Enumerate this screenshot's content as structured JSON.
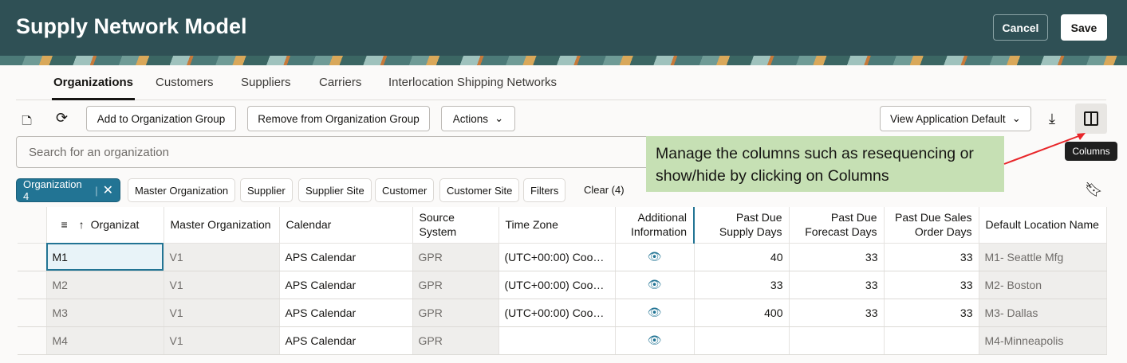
{
  "header": {
    "title": "Supply Network Model",
    "cancel": "Cancel",
    "save": "Save"
  },
  "tabs": [
    "Organizations",
    "Customers",
    "Suppliers",
    "Carriers",
    "Interlocation Shipping Networks"
  ],
  "toolbar": {
    "add": "Add to Organization Group",
    "remove": "Remove from Organization Group",
    "actions": "Actions",
    "view": "View Application Default",
    "columns_tooltip": "Columns"
  },
  "search": {
    "placeholder": "Search for an organization"
  },
  "filters": {
    "selected": "Organization 4",
    "chips": [
      "Master Organization",
      "Supplier",
      "Supplier Site",
      "Customer",
      "Customer Site",
      "Filters"
    ],
    "clear": "Clear (4)"
  },
  "callout": "Manage the columns such as resequencing or show/hide by clicking on Columns",
  "table": {
    "columns": [
      "Organizat",
      "Master Organization",
      "Calendar",
      "Source System",
      "Time Zone",
      "Additional Information",
      "Past Due Supply Days",
      "Past Due Forecast Days",
      "Past Due Sales Order Days",
      "Default Location Name"
    ],
    "rows": [
      [
        "M1",
        "V1",
        "APS Calendar",
        "GPR",
        "(UTC+00:00) Coo…",
        "eye",
        "40",
        "33",
        "33",
        "M1- Seattle Mfg"
      ],
      [
        "M2",
        "V1",
        "APS Calendar",
        "GPR",
        "(UTC+00:00) Coo…",
        "eye",
        "33",
        "33",
        "33",
        "M2- Boston"
      ],
      [
        "M3",
        "V1",
        "APS Calendar",
        "GPR",
        "(UTC+00:00) Coo…",
        "eye",
        "400",
        "33",
        "33",
        "M3- Dallas"
      ],
      [
        "M4",
        "V1",
        "APS Calendar",
        "GPR",
        "",
        "eye",
        "",
        "",
        "",
        "M4-Minneapolis"
      ]
    ]
  },
  "colors": {
    "header": "#2f5055",
    "accent": "#227494",
    "callout": "#c6e0b4",
    "arrow": "#e8262a"
  }
}
